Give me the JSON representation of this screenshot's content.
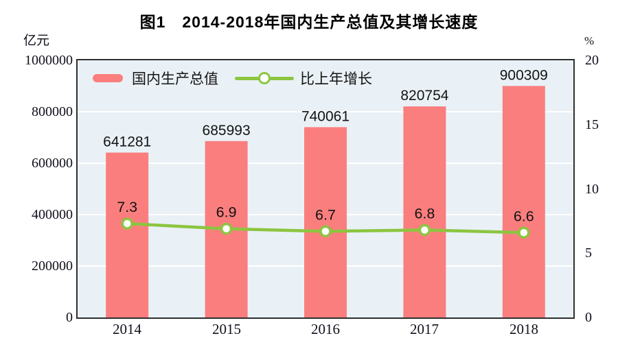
{
  "title": "图1　2014-2018年国内生产总值及其增长速度",
  "left_axis": {
    "unit": "亿元",
    "ticks": [
      "1000000",
      "800000",
      "600000",
      "400000",
      "200000",
      "0"
    ]
  },
  "right_axis": {
    "unit": "%",
    "ticks": [
      "20",
      "15",
      "10",
      "5",
      "0"
    ]
  },
  "legend": [
    {
      "label": "国内生产总值",
      "type": "bar",
      "color": "#fb7e7e"
    },
    {
      "label": "比上年增长",
      "type": "line",
      "color": "#8cc540"
    }
  ],
  "colors": {
    "bar": "#fb7e7e",
    "line": "#8cc540",
    "marker_fill": "#ffffff",
    "plot_background": "#e9f1f6",
    "gridline": "#ffffff",
    "plot_border": "#2e2e2e",
    "label_text": "#141414"
  },
  "chart_data": {
    "type": "bar+line",
    "title": "图1　2014-2018年国内生产总值及其增长速度",
    "categories": [
      "2014",
      "2015",
      "2016",
      "2017",
      "2018"
    ],
    "series": [
      {
        "name": "国内生产总值",
        "type": "bar",
        "axis": "left",
        "unit": "亿元",
        "values": [
          641281,
          685993,
          740061,
          820754,
          900309
        ],
        "color": "#fb7e7e"
      },
      {
        "name": "比上年增长",
        "type": "line",
        "axis": "right",
        "unit": "%",
        "values": [
          7.3,
          6.9,
          6.7,
          6.8,
          6.6
        ],
        "color": "#8cc540"
      }
    ],
    "left_ylim": [
      0,
      1000000
    ],
    "right_ylim": [
      0,
      20
    ],
    "gridlines": [
      200000,
      400000,
      600000,
      800000
    ],
    "grid": true,
    "legend_position": "top-left-inside",
    "plot_bg": "#e9f1f6"
  }
}
